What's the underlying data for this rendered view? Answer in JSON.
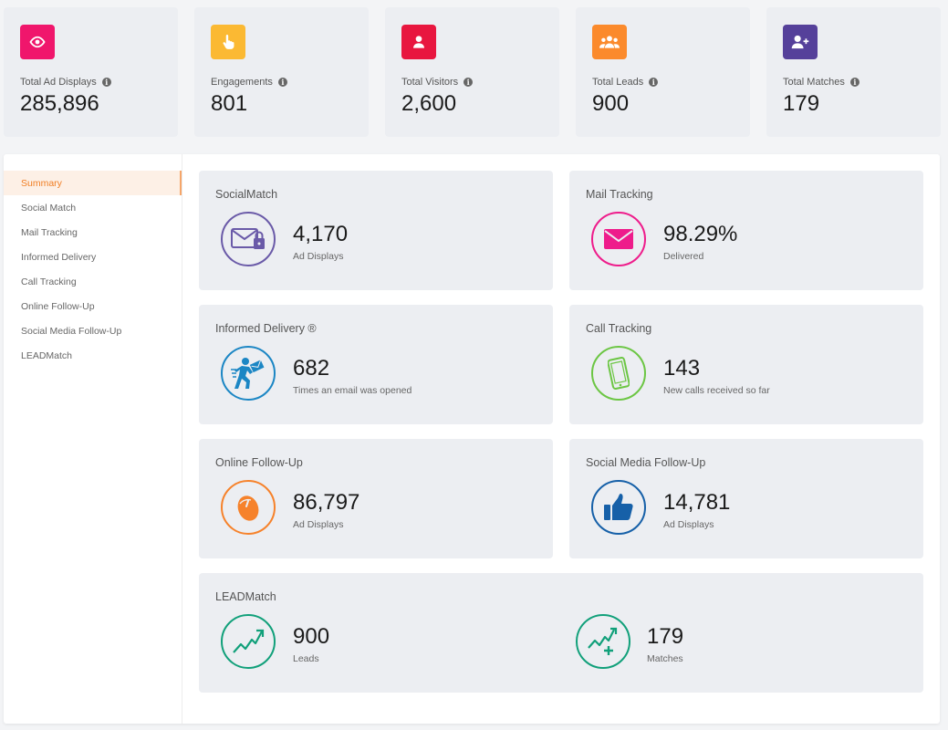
{
  "stats": [
    {
      "label": "Total Ad Displays",
      "value": "285,896",
      "icon": "eye-icon",
      "color": "#f0166c"
    },
    {
      "label": "Engagements",
      "value": "801",
      "icon": "pointer-hand-icon",
      "color": "#fbb933"
    },
    {
      "label": "Total Visitors",
      "value": "2,600",
      "icon": "user-icon",
      "color": "#e8163f"
    },
    {
      "label": "Total Leads",
      "value": "900",
      "icon": "group-icon",
      "color": "#fb8a2c"
    },
    {
      "label": "Total Matches",
      "value": "179",
      "icon": "user-plus-icon",
      "color": "#55409a"
    }
  ],
  "info_glyph": "i",
  "sidebar": {
    "items": [
      {
        "label": "Summary",
        "active": true
      },
      {
        "label": "Social Match"
      },
      {
        "label": "Mail Tracking"
      },
      {
        "label": "Informed Delivery"
      },
      {
        "label": "Call Tracking"
      },
      {
        "label": "Online Follow-Up"
      },
      {
        "label": "Social Media Follow-Up"
      },
      {
        "label": "LEADMatch"
      }
    ]
  },
  "tiles": {
    "socialmatch": {
      "title": "SocialMatch",
      "value": "4,170",
      "sub": "Ad Displays",
      "color": "#6a5aa8",
      "icon": "mail-lock-icon"
    },
    "mail_tracking": {
      "title": "Mail Tracking",
      "value": "98.29%",
      "sub": "Delivered",
      "color": "#ee1c8b",
      "icon": "envelope-icon"
    },
    "informed_delivery": {
      "title": "Informed Delivery ®",
      "value": "682",
      "sub": "Times an email was opened",
      "color": "#1b86c4",
      "icon": "running-mail-icon"
    },
    "call_tracking": {
      "title": "Call Tracking",
      "value": "143",
      "sub": "New calls received so far",
      "color": "#6cc644",
      "icon": "phone-icon"
    },
    "online_followup": {
      "title": "Online Follow-Up",
      "value": "86,797",
      "sub": "Ad Displays",
      "color": "#f6822b",
      "icon": "mouse-icon"
    },
    "social_followup": {
      "title": "Social Media Follow-Up",
      "value": "14,781",
      "sub": "Ad Displays",
      "color": "#1660a8",
      "icon": "thumbs-up-icon"
    },
    "leadmatch": {
      "title": "LEADMatch",
      "color": "#11a07a",
      "leads": {
        "value": "900",
        "sub": "Leads",
        "icon": "trend-up-icon"
      },
      "matches": {
        "value": "179",
        "sub": "Matches",
        "icon": "trend-up-plus-icon"
      }
    }
  }
}
